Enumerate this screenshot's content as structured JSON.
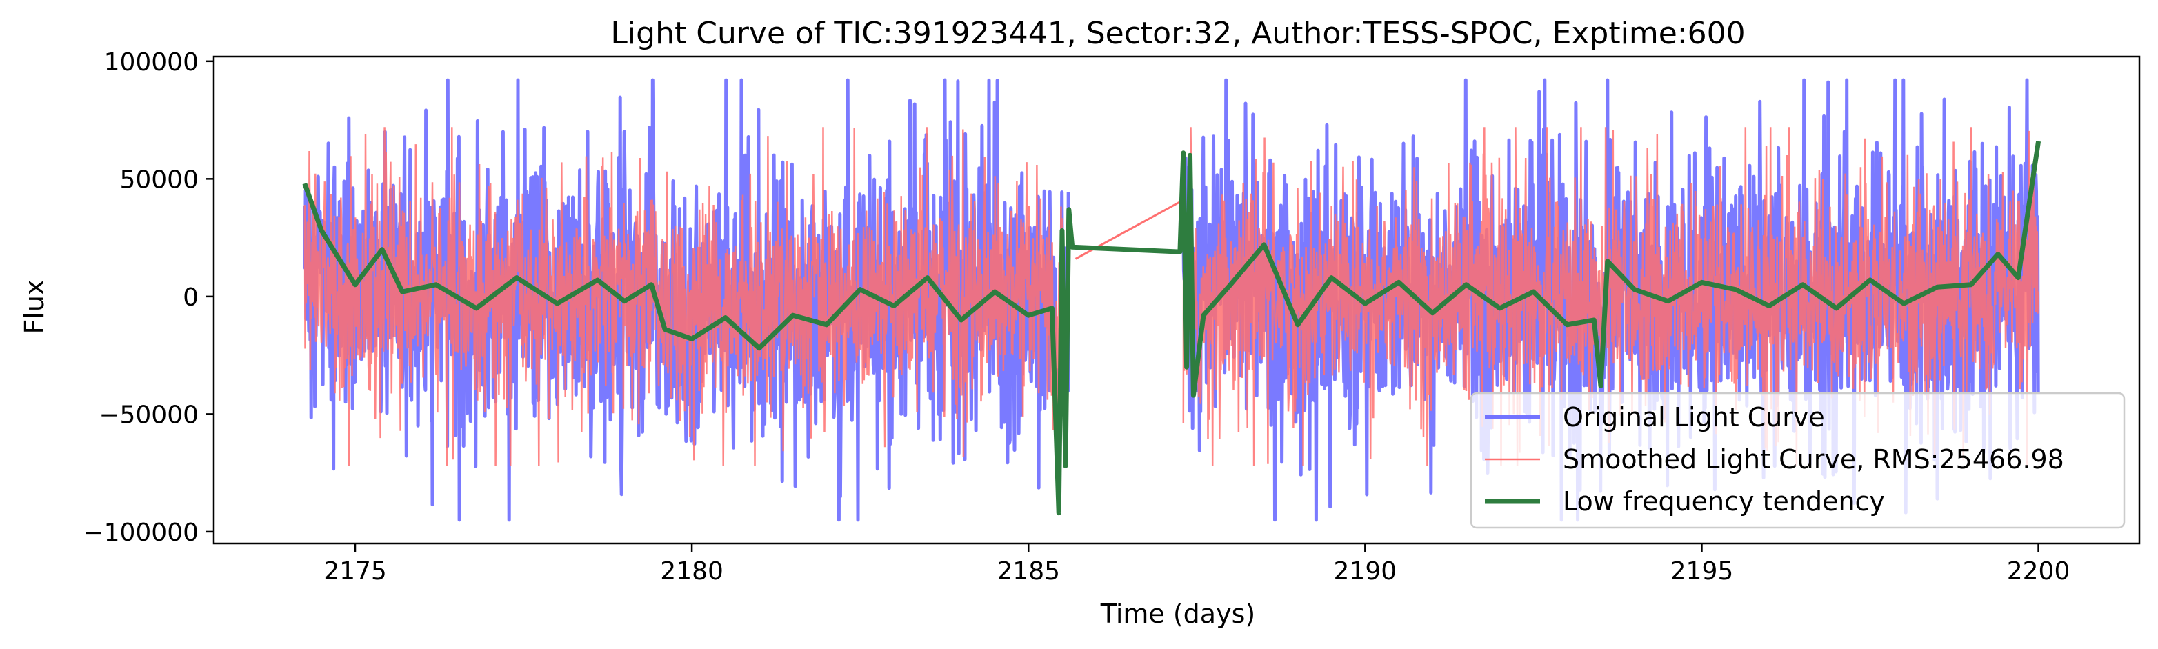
{
  "chart_data": {
    "type": "line",
    "title": "Light Curve of TIC:391923441, Sector:32, Author:TESS-SPOC, Exptime:600",
    "xlabel": "Time (days)",
    "ylabel": "Flux",
    "xlim": [
      2172.9,
      2201.5
    ],
    "ylim": [
      -105000,
      102000
    ],
    "x_ticks": [
      2175,
      2180,
      2185,
      2190,
      2195,
      2200
    ],
    "y_ticks": [
      -100000,
      -50000,
      0,
      50000,
      100000
    ],
    "x_tick_labels": [
      "2175",
      "2180",
      "2185",
      "2190",
      "2195",
      "2200"
    ],
    "y_tick_labels": [
      "−100000",
      "−50000",
      "0",
      "50000",
      "100000"
    ],
    "grid": false,
    "legend_position": "lower right",
    "rms": 25466.98,
    "segments": [
      {
        "start": 2174.25,
        "end": 2185.6
      },
      {
        "start": 2187.3,
        "end": 2200.0
      }
    ],
    "series": [
      {
        "name": "Original Light Curve",
        "color": "#7373ff",
        "style": "noisy",
        "amplitude": 45000,
        "range_observed": [
          -95000,
          92000
        ]
      },
      {
        "name": "Smoothed Light Curve, RMS:25466.98",
        "color": "#ff7070",
        "style": "noisy",
        "amplitude": 38000
      },
      {
        "name": "Low frequency tendency",
        "color": "#2e7d3f",
        "style": "trend",
        "points": [
          [
            2174.25,
            48000
          ],
          [
            2174.5,
            28000
          ],
          [
            2175.0,
            5000
          ],
          [
            2175.4,
            20000
          ],
          [
            2175.7,
            2000
          ],
          [
            2176.2,
            5000
          ],
          [
            2176.8,
            -5000
          ],
          [
            2177.4,
            8000
          ],
          [
            2178.0,
            -3000
          ],
          [
            2178.6,
            7000
          ],
          [
            2179.0,
            -2000
          ],
          [
            2179.4,
            5000
          ],
          [
            2179.6,
            -14000
          ],
          [
            2180.0,
            -18000
          ],
          [
            2180.5,
            -9000
          ],
          [
            2181.0,
            -22000
          ],
          [
            2181.5,
            -8000
          ],
          [
            2182.0,
            -12000
          ],
          [
            2182.5,
            3000
          ],
          [
            2183.0,
            -4000
          ],
          [
            2183.5,
            8000
          ],
          [
            2184.0,
            -10000
          ],
          [
            2184.5,
            2000
          ],
          [
            2185.0,
            -8000
          ],
          [
            2185.35,
            -5000
          ],
          [
            2185.45,
            -92000
          ],
          [
            2185.5,
            28000
          ],
          [
            2185.55,
            -72000
          ],
          [
            2185.6,
            37000
          ],
          [
            2185.65,
            21000
          ],
          [
            2187.25,
            19000
          ],
          [
            2187.3,
            61000
          ],
          [
            2187.35,
            -30000
          ],
          [
            2187.4,
            60000
          ],
          [
            2187.45,
            -42000
          ],
          [
            2187.6,
            -8000
          ],
          [
            2188.0,
            5000
          ],
          [
            2188.5,
            22000
          ],
          [
            2189.0,
            -12000
          ],
          [
            2189.5,
            8000
          ],
          [
            2190.0,
            -3000
          ],
          [
            2190.5,
            6000
          ],
          [
            2191.0,
            -7000
          ],
          [
            2191.5,
            5000
          ],
          [
            2192.0,
            -5000
          ],
          [
            2192.5,
            2000
          ],
          [
            2193.0,
            -12000
          ],
          [
            2193.4,
            -10000
          ],
          [
            2193.5,
            -38000
          ],
          [
            2193.6,
            15000
          ],
          [
            2194.0,
            3000
          ],
          [
            2194.5,
            -2000
          ],
          [
            2195.0,
            6000
          ],
          [
            2195.5,
            3000
          ],
          [
            2196.0,
            -4000
          ],
          [
            2196.5,
            5000
          ],
          [
            2197.0,
            -5000
          ],
          [
            2197.5,
            7000
          ],
          [
            2198.0,
            -3000
          ],
          [
            2198.5,
            4000
          ],
          [
            2199.0,
            5000
          ],
          [
            2199.4,
            18000
          ],
          [
            2199.7,
            8000
          ],
          [
            2200.0,
            66000
          ]
        ]
      }
    ],
    "connector_line": {
      "color": "#ff7070",
      "from": [
        2185.7,
        16000
      ],
      "to": [
        2187.3,
        41000
      ]
    }
  }
}
